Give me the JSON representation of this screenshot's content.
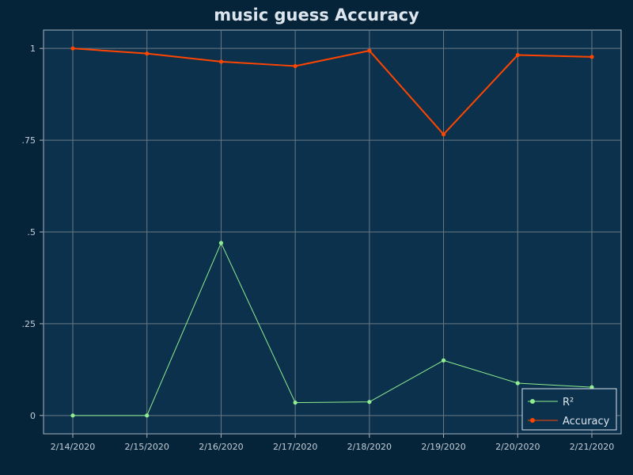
{
  "chart_data": {
    "type": "line",
    "title": "music guess Accuracy",
    "xlabel": "",
    "ylabel": "",
    "categories": [
      "2/14/2020",
      "2/15/2020",
      "2/16/2020",
      "2/17/2020",
      "2/18/2020",
      "2/19/2020",
      "2/20/2020",
      "2/21/2020"
    ],
    "ylim": [
      -0.05,
      1.05
    ],
    "yticks": [
      0,
      0.25,
      0.5,
      0.75,
      1
    ],
    "ytick_labels": [
      "0",
      ".25",
      ".5",
      ".75",
      "1"
    ],
    "grid": true,
    "legend_position": "bottom-right",
    "series": [
      {
        "name": "R²",
        "color": "#90ee90",
        "values": [
          0.0,
          0.0,
          0.47,
          0.035,
          0.037,
          0.15,
          0.088,
          0.077
        ]
      },
      {
        "name": "Accuracy",
        "color": "#ff4500",
        "values": [
          1.0,
          0.986,
          0.964,
          0.952,
          0.994,
          0.766,
          0.982,
          0.977
        ]
      }
    ],
    "colors": {
      "background": "#062439",
      "plot_background": "#0b314c",
      "grid": "#6b7a86",
      "frame": "#a8b6c2"
    }
  }
}
